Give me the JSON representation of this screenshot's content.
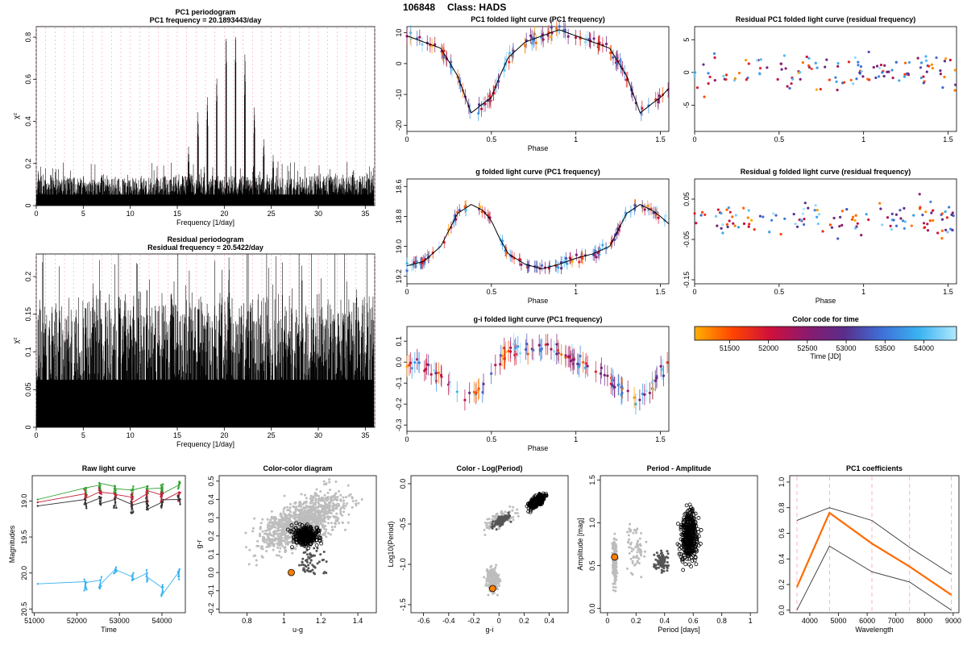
{
  "header": {
    "object_id": "106848",
    "class_label": "Class: HADS"
  },
  "colors": {
    "blue": "#3f8fe0",
    "cyan": "#3ab3f0",
    "purple": "#6a3d9a",
    "red": "#c0203a",
    "orange": "#ff7f00",
    "gray": "#bdbdbd",
    "dark_gray": "#555555",
    "pink_dashed": "#ff9fb0"
  },
  "chart_data": [
    {
      "id": "pc1_periodogram",
      "type": "line",
      "title": "PC1 periodogram",
      "subtitle": "PC1 frequency = 20.1893443/day",
      "xlabel": "Frequency [1/day]",
      "ylabel": "χ²",
      "xlim": [
        0,
        36
      ],
      "ylim": [
        0,
        0.85
      ],
      "xticks": [
        0,
        5,
        10,
        15,
        20,
        25,
        30,
        35
      ],
      "yticks": [
        0.0,
        0.2,
        0.4,
        0.6,
        0.8
      ],
      "peaks": [
        {
          "x": 17.2,
          "y": 0.45
        },
        {
          "x": 18.2,
          "y": 0.53
        },
        {
          "x": 19.2,
          "y": 0.63
        },
        {
          "x": 20.2,
          "y": 0.84
        },
        {
          "x": 21.2,
          "y": 0.85
        },
        {
          "x": 22.2,
          "y": 0.75
        },
        {
          "x": 23.2,
          "y": 0.48
        },
        {
          "x": 24.2,
          "y": 0.32
        },
        {
          "x": 16.2,
          "y": 0.28
        },
        {
          "x": 25.2,
          "y": 0.24
        }
      ],
      "noise_level": 0.15,
      "grid": "dashed vertical"
    },
    {
      "id": "residual_periodogram",
      "type": "line",
      "title": "Residual periodogram",
      "subtitle": "Residual frequency = 20.5422/day",
      "xlabel": "Frequency [1/day]",
      "ylabel": "χ²",
      "xlim": [
        0,
        36
      ],
      "ylim": [
        0,
        0.23
      ],
      "xticks": [
        0,
        5,
        10,
        15,
        20,
        25,
        30,
        35
      ],
      "yticks": [
        0.0,
        0.05,
        0.1,
        0.15,
        0.2
      ],
      "peaks": [
        {
          "x": 20.5,
          "y": 0.232
        }
      ],
      "noise_level": 0.18,
      "grid": "dashed vertical"
    },
    {
      "id": "pc1_folded",
      "type": "scatter",
      "title": "PC1 folded light curve (PC1 frequency)",
      "xlabel": "Phase",
      "ylabel": "",
      "xlim": [
        0,
        1.55
      ],
      "ylim": [
        -22,
        12
      ],
      "xticks": [
        0.0,
        0.5,
        1.0,
        1.5
      ],
      "yticks": [
        10,
        0,
        -10,
        -20
      ],
      "yticklabels": [
        "10",
        "0",
        "-10",
        "-20"
      ],
      "curve": {
        "x": [
          0,
          0.1,
          0.2,
          0.3,
          0.38,
          0.45,
          0.5,
          0.55,
          0.6,
          0.7,
          0.8,
          0.9,
          1.0,
          1.1,
          1.2,
          1.3,
          1.38,
          1.45,
          1.5,
          1.55
        ],
        "y": [
          9,
          7,
          5,
          -4,
          -16,
          -13,
          -11,
          -4,
          2,
          7,
          9,
          11,
          9,
          7,
          5,
          -4,
          -16,
          -13,
          -11,
          -8
        ]
      },
      "yerr": 2.5
    },
    {
      "id": "residual_pc1_folded",
      "type": "scatter",
      "title": "Residual PC1 folded light curve (residual frequency)",
      "xlabel": "",
      "ylabel": "",
      "xlim": [
        0,
        1.55
      ],
      "ylim": [
        -9,
        7
      ],
      "xticks": [
        0.0,
        0.5,
        1.0,
        1.5
      ],
      "yticks": [
        5,
        0,
        -5
      ],
      "yticklabels": [
        "5",
        "0",
        "-5"
      ],
      "scatter_sd": 2.5
    },
    {
      "id": "g_folded",
      "type": "scatter",
      "title": "g folded light curve (PC1 frequency)",
      "xlabel": "Phase",
      "ylabel": "",
      "xlim": [
        0,
        1.55
      ],
      "ylim": [
        19.25,
        18.55
      ],
      "xticks": [
        0.0,
        0.5,
        1.0,
        1.5
      ],
      "yticks": [
        18.6,
        18.8,
        19.0,
        19.2
      ],
      "yticklabels": [
        "18.6",
        "18.8",
        "19.0",
        "19.2"
      ],
      "curve": {
        "x": [
          0,
          0.1,
          0.2,
          0.3,
          0.38,
          0.45,
          0.5,
          0.55,
          0.6,
          0.7,
          0.8,
          0.9,
          1.0,
          1.1,
          1.2,
          1.3,
          1.38,
          1.45,
          1.5,
          1.55
        ],
        "y": [
          19.13,
          19.1,
          19.0,
          18.78,
          18.72,
          18.76,
          18.83,
          18.95,
          19.05,
          19.12,
          19.15,
          19.12,
          19.08,
          19.05,
          19.0,
          18.78,
          18.72,
          18.76,
          18.8,
          18.85
        ]
      },
      "yerr": 0.04
    },
    {
      "id": "residual_g_folded",
      "type": "scatter",
      "title": "Residual g folded light curve (residual frequency)",
      "xlabel": "Phase",
      "ylabel": "",
      "xlim": [
        0,
        1.55
      ],
      "ylim": [
        -0.16,
        0.1
      ],
      "xticks": [
        0.0,
        0.5,
        1.0,
        1.5
      ],
      "yticks": [
        0.05,
        -0.05,
        -0.15
      ],
      "yticklabels": [
        "0.05",
        "-0.05",
        "-0.15"
      ],
      "scatter_sd": 0.04
    },
    {
      "id": "gi_folded",
      "type": "scatter",
      "title": "g-i folded light curve (PC1 frequency)",
      "xlabel": "Phase",
      "ylabel": "",
      "xlim": [
        0,
        1.55
      ],
      "ylim": [
        -0.33,
        0.17
      ],
      "xticks": [
        0.0,
        0.5,
        1.0,
        1.5
      ],
      "yticks": [
        0.1,
        0.0,
        -0.1,
        -0.2,
        -0.3
      ],
      "yticklabels": [
        "0.1",
        "0.0",
        "-0.1",
        "-0.2",
        "-0.3"
      ],
      "curve": {
        "x": [
          0,
          0.1,
          0.2,
          0.3,
          0.38,
          0.45,
          0.5,
          0.55,
          0.6,
          0.7,
          0.8,
          0.9,
          1.0,
          1.1,
          1.2,
          1.3,
          1.38,
          1.45,
          1.5,
          1.55
        ],
        "y": [
          0.0,
          -0.02,
          -0.08,
          -0.15,
          -0.18,
          -0.12,
          -0.05,
          0.02,
          0.06,
          0.07,
          0.06,
          0.04,
          0.0,
          -0.02,
          -0.08,
          -0.15,
          -0.18,
          -0.12,
          -0.05,
          0.0
        ]
      },
      "yerr": 0.05
    },
    {
      "id": "color_code",
      "type": "heatmap",
      "title": "Color code for time",
      "xlabel": "Time [JD]",
      "xlim": [
        51050,
        54420
      ],
      "xticks": [
        51500,
        52000,
        52500,
        53000,
        53500,
        54000
      ],
      "gradient": [
        "#ffb000",
        "#ff4500",
        "#d0103a",
        "#8b1a6e",
        "#5a2d8a",
        "#3f6fd8",
        "#3ab3f0",
        "#b0e8ff"
      ]
    },
    {
      "id": "raw_light_curve",
      "type": "line",
      "title": "Raw light curve",
      "xlabel": "Time",
      "ylabel": "Magnitudes",
      "xlim": [
        50950,
        54550
      ],
      "ylim": [
        20.55,
        18.65
      ],
      "xticks": [
        51000,
        52000,
        53000,
        54000
      ],
      "yticks": [
        19.0,
        19.5,
        20.0,
        20.5
      ],
      "yticklabels": [
        "19.0",
        "19.5",
        "20.0",
        "20.5"
      ],
      "series": [
        {
          "color": "#2ca02c",
          "x": [
            51080,
            52200,
            52550,
            52900,
            53300,
            53650,
            54000,
            54400
          ],
          "y": [
            18.98,
            18.82,
            18.78,
            18.8,
            18.85,
            18.8,
            18.82,
            18.78
          ]
        },
        {
          "color": "#c0203a",
          "x": [
            51080,
            52200,
            52550,
            52900,
            53300,
            53650,
            54000,
            54400
          ],
          "y": [
            19.02,
            18.9,
            18.87,
            18.9,
            18.95,
            18.9,
            18.92,
            18.88
          ]
        },
        {
          "color": "#333333",
          "x": [
            51080,
            52200,
            52550,
            52900,
            53300,
            53650,
            54000,
            54400
          ],
          "y": [
            19.07,
            18.98,
            18.96,
            18.98,
            19.05,
            19.0,
            19.02,
            18.98
          ]
        },
        {
          "color": "#3ab3f0",
          "x": [
            51080,
            52200,
            52550,
            52900,
            53300,
            53650,
            54000,
            54400
          ],
          "y": [
            20.15,
            20.12,
            20.1,
            19.95,
            20.05,
            20.0,
            20.2,
            19.98
          ]
        }
      ]
    },
    {
      "id": "color_color",
      "type": "scatter",
      "title": "Color-color diagram",
      "xlabel": "u-g",
      "ylabel": "g-r",
      "xlim": [
        0.65,
        1.5
      ],
      "ylim": [
        -0.22,
        0.53
      ],
      "xticks": [
        0.8,
        1.0,
        1.2,
        1.4
      ],
      "yticks": [
        -0.2,
        -0.1,
        0.0,
        0.1,
        0.2,
        0.3,
        0.4,
        0.5
      ],
      "yticklabels": [
        "-0.2",
        "-0.1",
        "0.0",
        "0.1",
        "0.2",
        "0.3",
        "0.4",
        "0.5"
      ],
      "highlight": {
        "x": 1.04,
        "y": 0.0
      }
    },
    {
      "id": "color_logperiod",
      "type": "scatter",
      "title": "Color - Log(Period)",
      "xlabel": "g-i",
      "ylabel": "Log10(Period)",
      "xlim": [
        -0.7,
        0.55
      ],
      "ylim": [
        -1.6,
        0.1
      ],
      "xticks": [
        -0.6,
        -0.4,
        -0.2,
        0.0,
        0.2,
        0.4
      ],
      "yticks": [
        0.0,
        -0.5,
        -1.0,
        -1.5
      ],
      "yticklabels": [
        "0.0",
        "-0.5",
        "-1.0",
        "-1.5"
      ],
      "highlight": {
        "x": -0.05,
        "y": -1.3
      }
    },
    {
      "id": "period_amplitude",
      "type": "scatter",
      "title": "Period - Amplitude",
      "xlabel": "Period [days]",
      "ylabel": "Amplitude [mag]",
      "xlim": [
        -0.05,
        1.05
      ],
      "ylim": [
        -0.05,
        1.55
      ],
      "xticks": [
        0.0,
        0.2,
        0.4,
        0.6,
        0.8,
        1.0
      ],
      "yticks": [
        0.0,
        0.5,
        1.0,
        1.5
      ],
      "yticklabels": [
        "0.0",
        "0.5",
        "1.0",
        "1.5"
      ],
      "highlight": {
        "x": 0.05,
        "y": 0.6
      }
    },
    {
      "id": "pc1_coefficients",
      "type": "line",
      "title": "PC1 coefficients",
      "xlabel": "Wavelength",
      "ylabel": "",
      "xlim": [
        3300,
        9200
      ],
      "ylim": [
        -0.02,
        1.05
      ],
      "xticks": [
        4000,
        5000,
        6000,
        7000,
        8000,
        9000
      ],
      "yticks": [
        0.0,
        0.2,
        0.4,
        0.6,
        0.8,
        1.0
      ],
      "yticklabels": [
        "0.0",
        "0.2",
        "0.4",
        "0.6",
        "0.8",
        "1.0"
      ],
      "vlines": [
        3551,
        4686,
        6166,
        7480,
        8932
      ],
      "series": [
        {
          "color": "#ff6a00",
          "x": [
            3551,
            4686,
            6166,
            7480,
            8932
          ],
          "y": [
            0.18,
            0.76,
            0.52,
            0.34,
            0.12
          ]
        },
        {
          "color": "#333333",
          "x": [
            3551,
            4686,
            6166,
            7480,
            8932
          ],
          "y": [
            0.7,
            0.8,
            0.7,
            0.49,
            0.28
          ]
        },
        {
          "color": "#333333",
          "x": [
            3551,
            4686,
            6166,
            7480,
            8932
          ],
          "y": [
            0.0,
            0.5,
            0.3,
            0.22,
            0.0
          ]
        }
      ]
    }
  ]
}
